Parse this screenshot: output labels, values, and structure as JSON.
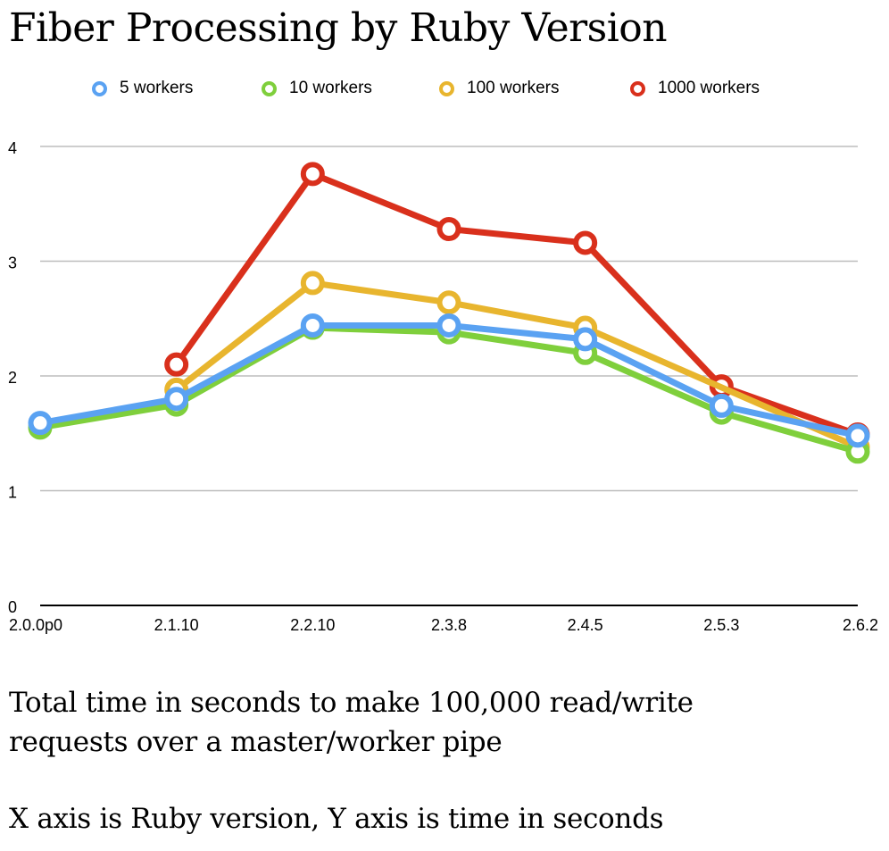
{
  "chart_data": {
    "type": "line",
    "title": "Fiber Processing by Ruby Version",
    "xlabel": "",
    "ylabel": "",
    "categories": [
      "2.0.0p0",
      "2.1.10",
      "2.2.10",
      "2.3.8",
      "2.4.5",
      "2.5.3",
      "2.6.2"
    ],
    "ylim": [
      0,
      4
    ],
    "yticks": [
      "0",
      "1",
      "2",
      "3",
      "4"
    ],
    "grid": true,
    "legend_position": "top",
    "series": [
      {
        "name": "5 workers",
        "color": "#5aa2f2",
        "values": [
          1.59,
          1.8,
          2.44,
          2.44,
          2.32,
          1.74,
          1.48
        ]
      },
      {
        "name": "10 workers",
        "color": "#7fcf3c",
        "values": [
          1.55,
          1.75,
          2.42,
          2.38,
          2.2,
          1.68,
          1.34
        ]
      },
      {
        "name": "100 workers",
        "color": "#e8b52e",
        "values": [
          null,
          1.88,
          2.81,
          2.64,
          2.42,
          null,
          1.38
        ]
      },
      {
        "name": "1000 workers",
        "color": "#d9301c",
        "values": [
          null,
          2.1,
          3.76,
          3.28,
          3.16,
          1.91,
          1.49
        ]
      }
    ]
  },
  "caption": {
    "line1": "Total time in seconds to make 100,000 read/write",
    "line2": "requests over a master/worker pipe",
    "line3": "X axis is Ruby version, Y axis is time in seconds"
  }
}
